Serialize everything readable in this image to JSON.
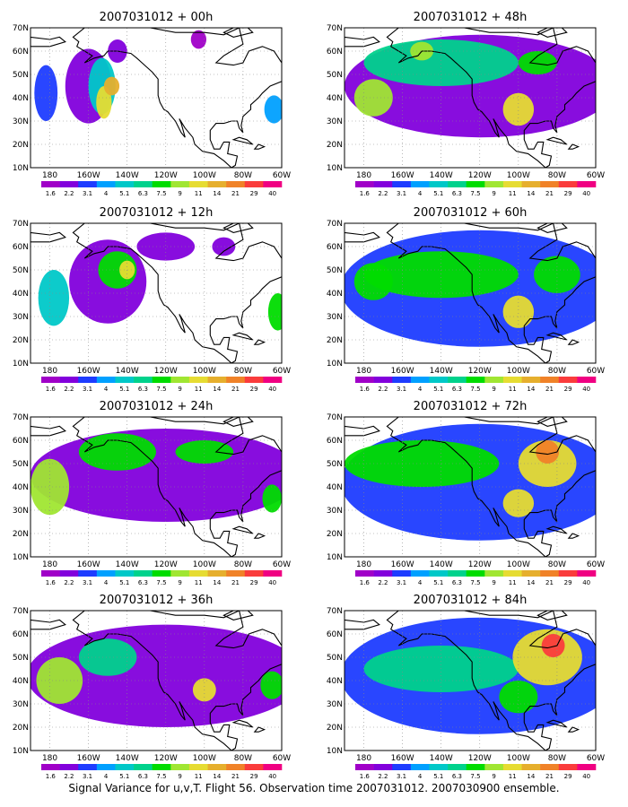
{
  "caption": "Signal Variance for u,v,T. Flight 56. Observation time 2007031012. 2007030900 ensemble.",
  "colorbar": {
    "labels": [
      "1.6",
      "2.2",
      "3.1",
      "4",
      "5.1",
      "6.3",
      "7.5",
      "9",
      "11",
      "14",
      "21",
      "29",
      "40"
    ],
    "colors": [
      "#a000c8",
      "#8200dc",
      "#1e3cff",
      "#00a0ff",
      "#00c8c8",
      "#00d28c",
      "#00dc00",
      "#a0e632",
      "#e6dc32",
      "#e6af2d",
      "#f08228",
      "#fa3c3c",
      "#f00082"
    ]
  },
  "axes": {
    "x_ticks": [
      "180",
      "160W",
      "140W",
      "120W",
      "100W",
      "80W",
      "60W"
    ],
    "y_ticks": [
      "10N",
      "20N",
      "30N",
      "40N",
      "50N",
      "60N",
      "70N"
    ]
  },
  "panels": [
    {
      "title": "2007031012 + 00h",
      "blobs": [
        {
          "lon": -160,
          "lat": 45,
          "rlon": 12,
          "rlat": 16,
          "level": 1
        },
        {
          "lon": -153,
          "lat": 45,
          "rlon": 7,
          "rlat": 12,
          "level": 4
        },
        {
          "lon": -152,
          "lat": 38,
          "rlon": 4,
          "rlat": 7,
          "level": 8
        },
        {
          "lon": -148,
          "lat": 45,
          "rlon": 4,
          "rlat": 4,
          "level": 9
        },
        {
          "lon": -182,
          "lat": 42,
          "rlon": 6,
          "rlat": 12,
          "level": 2
        },
        {
          "lon": -145,
          "lat": 60,
          "rlon": 5,
          "rlat": 5,
          "level": 1
        },
        {
          "lon": -103,
          "lat": 65,
          "rlon": 4,
          "rlat": 4,
          "level": 0
        },
        {
          "lon": -64,
          "lat": 35,
          "rlon": 5,
          "rlat": 6,
          "level": 3
        }
      ]
    },
    {
      "title": "2007031012 + 48h",
      "blobs": [
        {
          "lon": -120,
          "lat": 45,
          "rlon": 70,
          "rlat": 22,
          "level": 1
        },
        {
          "lon": -140,
          "lat": 55,
          "rlon": 40,
          "rlat": 10,
          "level": 5
        },
        {
          "lon": -175,
          "lat": 40,
          "rlon": 10,
          "rlat": 8,
          "level": 7
        },
        {
          "lon": -100,
          "lat": 35,
          "rlon": 8,
          "rlat": 7,
          "level": 8
        },
        {
          "lon": -150,
          "lat": 60,
          "rlon": 6,
          "rlat": 4,
          "level": 7
        },
        {
          "lon": -90,
          "lat": 55,
          "rlon": 10,
          "rlat": 5,
          "level": 6
        }
      ]
    },
    {
      "title": "2007031012 + 12h",
      "blobs": [
        {
          "lon": -150,
          "lat": 45,
          "rlon": 20,
          "rlat": 18,
          "level": 1
        },
        {
          "lon": -145,
          "lat": 50,
          "rlon": 10,
          "rlat": 8,
          "level": 6
        },
        {
          "lon": -140,
          "lat": 50,
          "rlon": 4,
          "rlat": 4,
          "level": 8
        },
        {
          "lon": -178,
          "lat": 38,
          "rlon": 8,
          "rlat": 12,
          "level": 4
        },
        {
          "lon": -120,
          "lat": 60,
          "rlon": 15,
          "rlat": 6,
          "level": 1
        },
        {
          "lon": -62,
          "lat": 32,
          "rlon": 5,
          "rlat": 8,
          "level": 6
        },
        {
          "lon": -90,
          "lat": 60,
          "rlon": 6,
          "rlat": 4,
          "level": 1
        }
      ]
    },
    {
      "title": "2007031012 + 60h",
      "blobs": [
        {
          "lon": -120,
          "lat": 42,
          "rlon": 72,
          "rlat": 25,
          "level": 2
        },
        {
          "lon": -140,
          "lat": 48,
          "rlon": 40,
          "rlat": 10,
          "level": 6
        },
        {
          "lon": -100,
          "lat": 32,
          "rlon": 8,
          "rlat": 7,
          "level": 8
        },
        {
          "lon": -175,
          "lat": 45,
          "rlon": 10,
          "rlat": 8,
          "level": 6
        },
        {
          "lon": -80,
          "lat": 48,
          "rlon": 12,
          "rlat": 8,
          "level": 6
        }
      ]
    },
    {
      "title": "2007031012 + 24h",
      "blobs": [
        {
          "lon": -120,
          "lat": 45,
          "rlon": 70,
          "rlat": 20,
          "level": 1
        },
        {
          "lon": -180,
          "lat": 40,
          "rlon": 10,
          "rlat": 12,
          "level": 7
        },
        {
          "lon": -145,
          "lat": 55,
          "rlon": 20,
          "rlat": 8,
          "level": 6
        },
        {
          "lon": -100,
          "lat": 55,
          "rlon": 15,
          "rlat": 5,
          "level": 6
        },
        {
          "lon": -65,
          "lat": 35,
          "rlon": 5,
          "rlat": 6,
          "level": 6
        }
      ]
    },
    {
      "title": "2007031012 + 72h",
      "blobs": [
        {
          "lon": -120,
          "lat": 42,
          "rlon": 72,
          "rlat": 25,
          "level": 2
        },
        {
          "lon": -150,
          "lat": 50,
          "rlon": 40,
          "rlat": 10,
          "level": 6
        },
        {
          "lon": -85,
          "lat": 50,
          "rlon": 15,
          "rlat": 10,
          "level": 8
        },
        {
          "lon": -85,
          "lat": 55,
          "rlon": 6,
          "rlat": 5,
          "level": 10
        },
        {
          "lon": -100,
          "lat": 33,
          "rlon": 8,
          "rlat": 6,
          "level": 8
        }
      ]
    },
    {
      "title": "2007031012 + 36h",
      "blobs": [
        {
          "lon": -120,
          "lat": 42,
          "rlon": 72,
          "rlat": 22,
          "level": 1
        },
        {
          "lon": -175,
          "lat": 40,
          "rlon": 12,
          "rlat": 10,
          "level": 7
        },
        {
          "lon": -150,
          "lat": 50,
          "rlon": 15,
          "rlat": 8,
          "level": 5
        },
        {
          "lon": -100,
          "lat": 36,
          "rlon": 6,
          "rlat": 5,
          "level": 8
        },
        {
          "lon": -65,
          "lat": 38,
          "rlon": 6,
          "rlat": 6,
          "level": 6
        }
      ]
    },
    {
      "title": "2007031012 + 84h",
      "blobs": [
        {
          "lon": -120,
          "lat": 42,
          "rlon": 72,
          "rlat": 25,
          "level": 2
        },
        {
          "lon": -140,
          "lat": 45,
          "rlon": 40,
          "rlat": 10,
          "level": 5
        },
        {
          "lon": -85,
          "lat": 50,
          "rlon": 18,
          "rlat": 12,
          "level": 8
        },
        {
          "lon": -82,
          "lat": 55,
          "rlon": 6,
          "rlat": 5,
          "level": 11
        },
        {
          "lon": -100,
          "lat": 33,
          "rlon": 10,
          "rlat": 7,
          "level": 6
        }
      ]
    }
  ]
}
